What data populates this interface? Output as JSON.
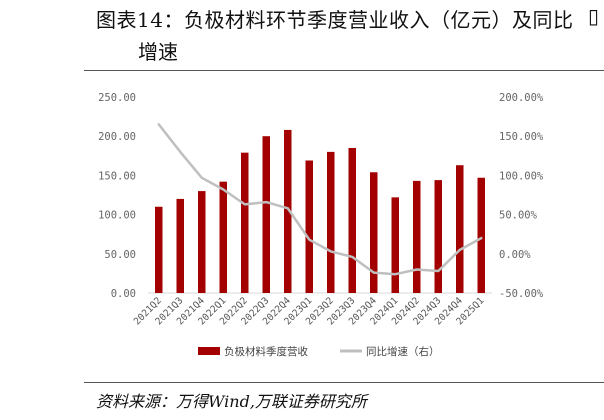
{
  "header": {
    "title_line1": "图表14：负极材料环节季度营业收入（亿元）及同比",
    "title_line2": "增速",
    "edge_glyph": "▯"
  },
  "footer": {
    "source": "资料来源：万得Wind,万联证券研究所"
  },
  "chart_data": {
    "type": "bar",
    "categories": [
      "2021Q2",
      "2021Q3",
      "2021Q4",
      "2022Q1",
      "2022Q2",
      "2022Q3",
      "2022Q4",
      "2023Q1",
      "2023Q2",
      "2023Q3",
      "2023Q4",
      "2024Q1",
      "2024Q2",
      "2024Q3",
      "2024Q4",
      "2025Q1"
    ],
    "series": [
      {
        "name": "负极材料季度营收",
        "type": "bar",
        "axis": "left",
        "color": "#a30000",
        "values": [
          110,
          120,
          130,
          142,
          179,
          200,
          208,
          169,
          180,
          185,
          154,
          122,
          143,
          144,
          163,
          147
        ]
      },
      {
        "name": "同比增速（右）",
        "type": "line",
        "axis": "right",
        "color": "#bfbfbf",
        "values": [
          165,
          130,
          97,
          82,
          63,
          66,
          58,
          18,
          3,
          -4,
          -24,
          -26,
          -20,
          -22,
          5,
          20
        ]
      }
    ],
    "y_left": {
      "ylim": [
        0,
        250
      ],
      "ticks": [
        "0.00",
        "50.00",
        "100.00",
        "150.00",
        "200.00",
        "250.00"
      ]
    },
    "y_right": {
      "ylim": [
        -50,
        200
      ],
      "ticks": [
        "-50.00%",
        "0.00%",
        "50.00%",
        "100.00%",
        "150.00%",
        "200.00%"
      ]
    },
    "grid": false,
    "legend_position": "bottom"
  }
}
